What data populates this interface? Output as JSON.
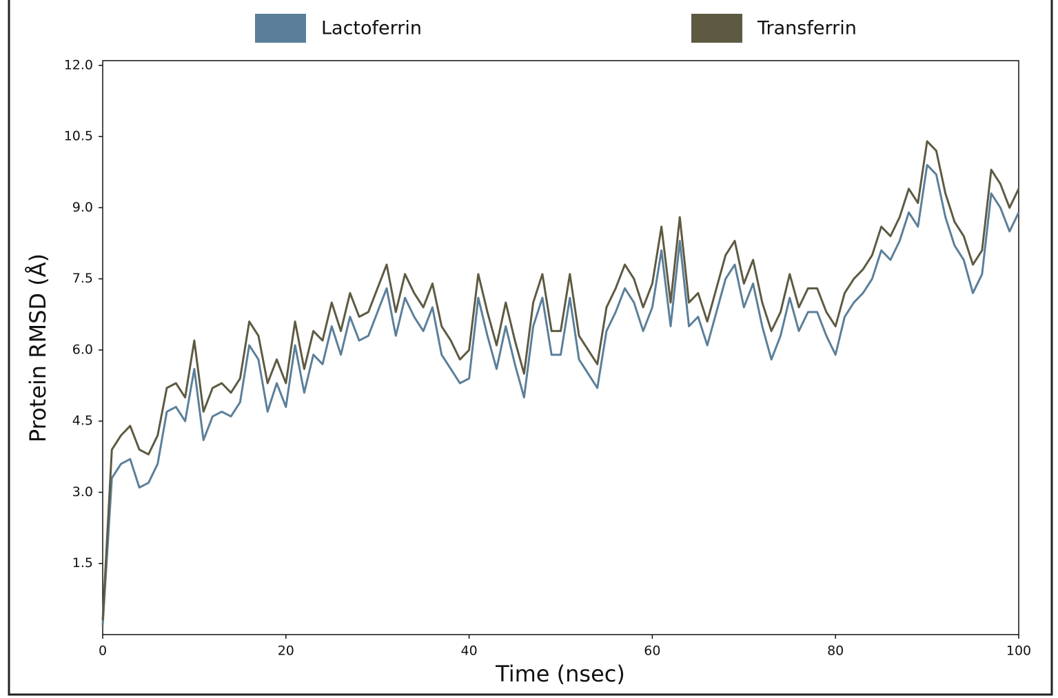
{
  "chart_data": {
    "type": "line",
    "xlabel": "Time (nsec)",
    "ylabel": "Protein RMSD (Å)",
    "x": [
      0,
      1,
      2,
      3,
      4,
      5,
      6,
      7,
      8,
      9,
      10,
      11,
      12,
      13,
      14,
      15,
      16,
      17,
      18,
      19,
      20,
      21,
      22,
      23,
      24,
      25,
      26,
      27,
      28,
      29,
      30,
      31,
      32,
      33,
      34,
      35,
      36,
      37,
      38,
      39,
      40,
      41,
      42,
      43,
      44,
      45,
      46,
      47,
      48,
      49,
      50,
      51,
      52,
      53,
      54,
      55,
      56,
      57,
      58,
      59,
      60,
      61,
      62,
      63,
      64,
      65,
      66,
      67,
      68,
      69,
      70,
      71,
      72,
      73,
      74,
      75,
      76,
      77,
      78,
      79,
      80,
      81,
      82,
      83,
      84,
      85,
      86,
      87,
      88,
      89,
      90,
      91,
      92,
      93,
      94,
      95,
      96,
      97,
      98,
      99,
      100
    ],
    "series": [
      {
        "name": "Lactoferrin",
        "color": "#5b7f9a",
        "values": [
          0.2,
          3.3,
          3.6,
          3.7,
          3.1,
          3.2,
          3.6,
          4.7,
          4.8,
          4.5,
          5.6,
          4.1,
          4.6,
          4.7,
          4.6,
          4.9,
          6.1,
          5.8,
          4.7,
          5.3,
          4.8,
          6.1,
          5.1,
          5.9,
          5.7,
          6.5,
          5.9,
          6.7,
          6.2,
          6.3,
          6.8,
          7.3,
          6.3,
          7.1,
          6.7,
          6.4,
          6.9,
          5.9,
          5.6,
          5.3,
          5.4,
          7.1,
          6.3,
          5.6,
          6.5,
          5.7,
          5.0,
          6.5,
          7.1,
          5.9,
          5.9,
          7.1,
          5.8,
          5.5,
          5.2,
          6.4,
          6.8,
          7.3,
          7.0,
          6.4,
          6.9,
          8.1,
          6.5,
          8.3,
          6.5,
          6.7,
          6.1,
          6.8,
          7.5,
          7.8,
          6.9,
          7.4,
          6.5,
          5.8,
          6.3,
          7.1,
          6.4,
          6.8,
          6.8,
          6.3,
          5.9,
          6.7,
          7.0,
          7.2,
          7.5,
          8.1,
          7.9,
          8.3,
          8.9,
          8.6,
          9.9,
          9.7,
          8.8,
          8.2,
          7.9,
          7.2,
          7.6,
          9.3,
          9.0,
          8.5,
          8.9
        ]
      },
      {
        "name": "Transferrin",
        "color": "#5e5a42",
        "values": [
          0.3,
          3.9,
          4.2,
          4.4,
          3.9,
          3.8,
          4.2,
          5.2,
          5.3,
          5.0,
          6.2,
          4.7,
          5.2,
          5.3,
          5.1,
          5.4,
          6.6,
          6.3,
          5.3,
          5.8,
          5.3,
          6.6,
          5.6,
          6.4,
          6.2,
          7.0,
          6.4,
          7.2,
          6.7,
          6.8,
          7.3,
          7.8,
          6.8,
          7.6,
          7.2,
          6.9,
          7.4,
          6.5,
          6.2,
          5.8,
          6.0,
          7.6,
          6.8,
          6.1,
          7.0,
          6.2,
          5.5,
          7.0,
          7.6,
          6.4,
          6.4,
          7.6,
          6.3,
          6.0,
          5.7,
          6.9,
          7.3,
          7.8,
          7.5,
          6.9,
          7.4,
          8.6,
          7.0,
          8.8,
          7.0,
          7.2,
          6.6,
          7.3,
          8.0,
          8.3,
          7.4,
          7.9,
          7.0,
          6.4,
          6.8,
          7.6,
          6.9,
          7.3,
          7.3,
          6.8,
          6.5,
          7.2,
          7.5,
          7.7,
          8.0,
          8.6,
          8.4,
          8.8,
          9.4,
          9.1,
          10.4,
          10.2,
          9.3,
          8.7,
          8.4,
          7.8,
          8.1,
          9.8,
          9.5,
          9.0,
          9.4
        ]
      }
    ],
    "xlim": [
      0,
      100
    ],
    "xticks": [
      0,
      20,
      40,
      60,
      80,
      100
    ],
    "ylim": [
      0,
      12.1
    ],
    "yticks": [
      1.5,
      {
        "value": 3,
        "label": "3.0"
      },
      4.5,
      {
        "value": 6,
        "label": "6.0"
      },
      7.5,
      {
        "value": 9,
        "label": "9.0"
      },
      10.5,
      {
        "value": 12,
        "label": "12.0"
      }
    ],
    "grid": false
  }
}
